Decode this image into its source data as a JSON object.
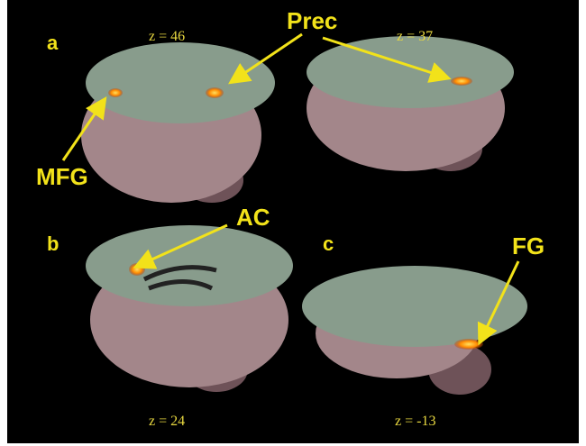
{
  "panels": [
    {
      "letter": "a"
    },
    {
      "letter": "b"
    },
    {
      "letter": "c"
    }
  ],
  "slices": [
    {
      "label": "z = 46"
    },
    {
      "label": "z = 37"
    },
    {
      "label": "z = 24"
    },
    {
      "label": "z = -13"
    }
  ],
  "regions": [
    {
      "label": "Prec"
    },
    {
      "label": "MFG"
    },
    {
      "label": "AC"
    },
    {
      "label": "FG"
    }
  ]
}
